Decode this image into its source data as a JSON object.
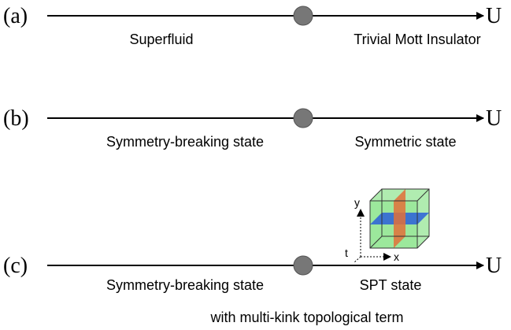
{
  "panels": [
    {
      "label": "(a)",
      "axis": "U",
      "left": "Superfluid",
      "right": "Trivial Mott Insulator"
    },
    {
      "label": "(b)",
      "axis": "U",
      "left": "Symmetry-breaking state",
      "right": "Symmetric state"
    },
    {
      "label": "(c)",
      "axis": "U",
      "left": "Symmetry-breaking state",
      "right": "SPT state",
      "note": "with multi-kink topological term"
    }
  ],
  "cube_axes": {
    "y": "y",
    "t": "t",
    "x": "x"
  }
}
